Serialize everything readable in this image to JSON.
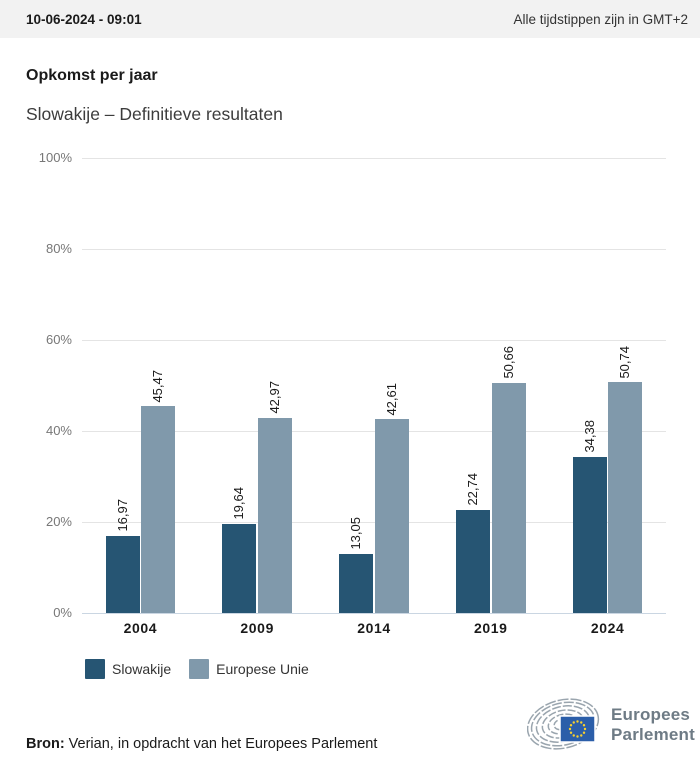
{
  "header": {
    "timestamp": "10-06-2024 - 09:01",
    "timezone_note": "Alle tijdstippen zijn in GMT+2"
  },
  "title": "Opkomst per jaar",
  "subtitle": "Slowakije – Definitieve resultaten",
  "chart_data": {
    "type": "bar",
    "title": "Opkomst per jaar",
    "subtitle": "Slowakije – Definitieve resultaten",
    "categories": [
      "2004",
      "2009",
      "2014",
      "2019",
      "2024"
    ],
    "series": [
      {
        "name": "Slowakije",
        "color": "#265573",
        "values": [
          16.97,
          19.64,
          13.05,
          22.74,
          34.38
        ]
      },
      {
        "name": "Europese Unie",
        "color": "#8099ab",
        "values": [
          45.47,
          42.97,
          42.61,
          50.66,
          50.74
        ]
      }
    ],
    "value_labels": [
      [
        "16,97",
        "19,64",
        "13,05",
        "22,74",
        "34,38"
      ],
      [
        "45,47",
        "42,97",
        "42,61",
        "50,66",
        "50,74"
      ]
    ],
    "decimal_separator": ",",
    "ylim": [
      0,
      100
    ],
    "yticks": [
      0,
      20,
      40,
      60,
      80,
      100
    ],
    "ytick_suffix": "%",
    "grid": true,
    "value_label_rotation": 90,
    "legend_position": "bottom-left"
  },
  "footer": {
    "source_label": "Bron:",
    "source_text": "Verian, in opdracht van het Europees Parlement"
  },
  "logo": {
    "line1": "Europees",
    "line2": "Parlement",
    "flag_color": "#2b5ea9",
    "star_color": "#f8d12e",
    "swirl_color": "#9aa5ae",
    "text_color": "#6e7b85"
  }
}
